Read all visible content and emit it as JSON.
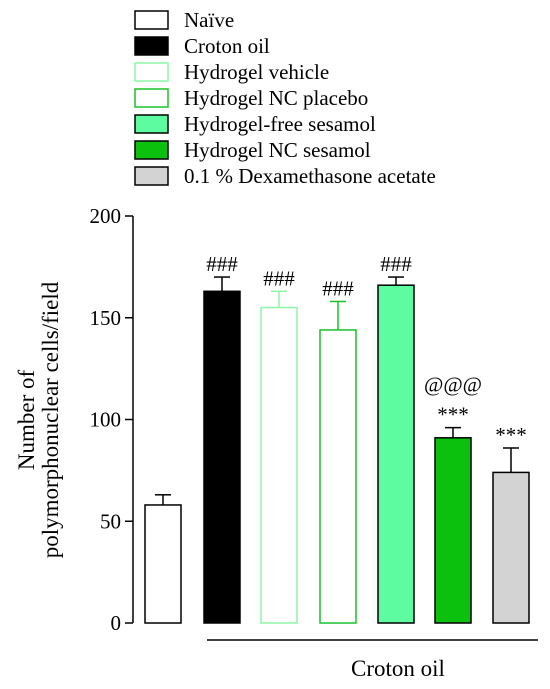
{
  "chart_data": {
    "type": "bar",
    "ylabel": "Number of polymorphonuclear cells/field",
    "ylabel_lines": [
      "Number of",
      "polymorphonuclear cells/field"
    ],
    "ylim": [
      0,
      200
    ],
    "yticks": [
      0,
      50,
      100,
      150,
      200
    ],
    "group_label": "Croton oil",
    "series": [
      {
        "name": "Naïve",
        "value": 58,
        "error": 5,
        "annotation": [],
        "fill": "#ffffff",
        "stroke": "#000000"
      },
      {
        "name": "Croton oil",
        "value": 163,
        "error": 7,
        "annotation": [
          "###"
        ],
        "fill": "#000000",
        "stroke": "#000000"
      },
      {
        "name": "Hydrogel vehicle",
        "value": 155,
        "error": 8,
        "annotation": [
          "###"
        ],
        "fill": "#ffffff",
        "stroke": "#8ff5a6"
      },
      {
        "name": "Hydrogel NC placebo",
        "value": 144,
        "error": 14,
        "annotation": [
          "###"
        ],
        "fill": "#ffffff",
        "stroke": "#19c22a"
      },
      {
        "name": "Hydrogel-free sesamol",
        "value": 166,
        "error": 4,
        "annotation": [
          "###"
        ],
        "fill": "#5dfca0",
        "stroke": "#000000"
      },
      {
        "name": "Hydrogel NC sesamol",
        "value": 91,
        "error": 5,
        "annotation": [
          "@@@",
          "***"
        ],
        "fill": "#0cc10e",
        "stroke": "#000000"
      },
      {
        "name": "0.1 % Dexamethasone acetate",
        "value": 74,
        "error": 12,
        "annotation": [
          "***"
        ],
        "fill": "#d3d3d3",
        "stroke": "#000000"
      }
    ]
  }
}
